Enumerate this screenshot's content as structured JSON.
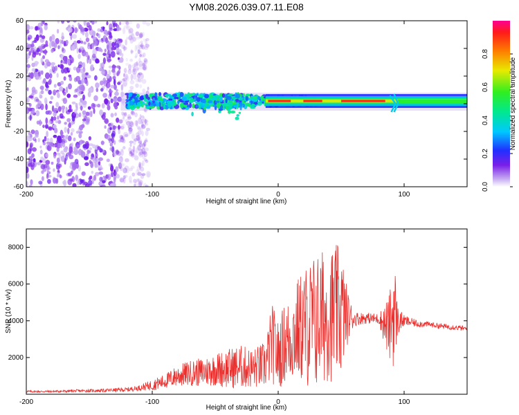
{
  "title": "YM08.2026.039.07.11.E08",
  "chart_data": [
    {
      "type": "heatmap",
      "xlabel": "Height of straight line (km)",
      "ylabel": "Frequency (Hz)",
      "xlim": [
        -200,
        150
      ],
      "ylim": [
        -60,
        60
      ],
      "x_ticks": [
        "-200",
        "-100",
        "0",
        "100"
      ],
      "y_ticks": [
        "-60",
        "-40",
        "-20",
        "0",
        "20",
        "40",
        "60"
      ],
      "colorbar": {
        "label": "Normalized spectral amplitude",
        "range": [
          0,
          1
        ],
        "ticks": [
          "0.0",
          "0.2",
          "0.4",
          "0.6",
          "0.8"
        ]
      },
      "features": [
        {
          "name": "noise-field",
          "x_range": [
            -200,
            -105
          ],
          "freq_range": [
            -60,
            60
          ],
          "amplitude": 0.1
        },
        {
          "name": "main-band",
          "x_range": [
            -120,
            150
          ],
          "center_freq_hz": 2,
          "amplitude_peak": 1.0
        },
        {
          "name": "disturbance",
          "x": 92,
          "freq_hz": 0
        }
      ]
    },
    {
      "type": "line",
      "xlabel": "Height of straight line (km)",
      "ylabel": "SNR (10 * v/v)",
      "xlim": [
        -200,
        150
      ],
      "ylim": [
        0,
        9000
      ],
      "x_ticks": [
        "-200",
        "-100",
        "0",
        "100"
      ],
      "y_ticks": [
        "2000",
        "4000",
        "6000",
        "8000"
      ],
      "series": [
        {
          "name": "SNR",
          "color": "#e8312e",
          "x": [
            -200,
            -180,
            -160,
            -140,
            -120,
            -110,
            -100,
            -90,
            -80,
            -70,
            -60,
            -50,
            -40,
            -30,
            -20,
            -10,
            -5,
            0,
            5,
            10,
            15,
            20,
            25,
            30,
            35,
            40,
            45,
            50,
            55,
            60,
            70,
            80,
            88,
            92,
            95,
            100,
            110,
            120,
            130,
            140,
            150
          ],
          "values": [
            150,
            150,
            180,
            200,
            250,
            350,
            500,
            700,
            1000,
            1150,
            1200,
            1350,
            1400,
            1500,
            1400,
            1600,
            2800,
            2100,
            2800,
            3000,
            3500,
            3700,
            3800,
            4000,
            4200,
            4300,
            4400,
            4500,
            4200,
            4100,
            4150,
            4100,
            3600,
            4600,
            4000,
            4000,
            3850,
            3800,
            3700,
            3650,
            3550
          ],
          "amplitude_env": [
            60,
            60,
            80,
            90,
            120,
            150,
            300,
            400,
            600,
            700,
            800,
            900,
            1100,
            1200,
            1100,
            1300,
            2200,
            1900,
            2200,
            2400,
            2800,
            3200,
            3600,
            3800,
            3700,
            3600,
            3800,
            3600,
            1500,
            400,
            300,
            300,
            1800,
            3200,
            800,
            300,
            200,
            150,
            150,
            150,
            150
          ]
        }
      ]
    }
  ]
}
